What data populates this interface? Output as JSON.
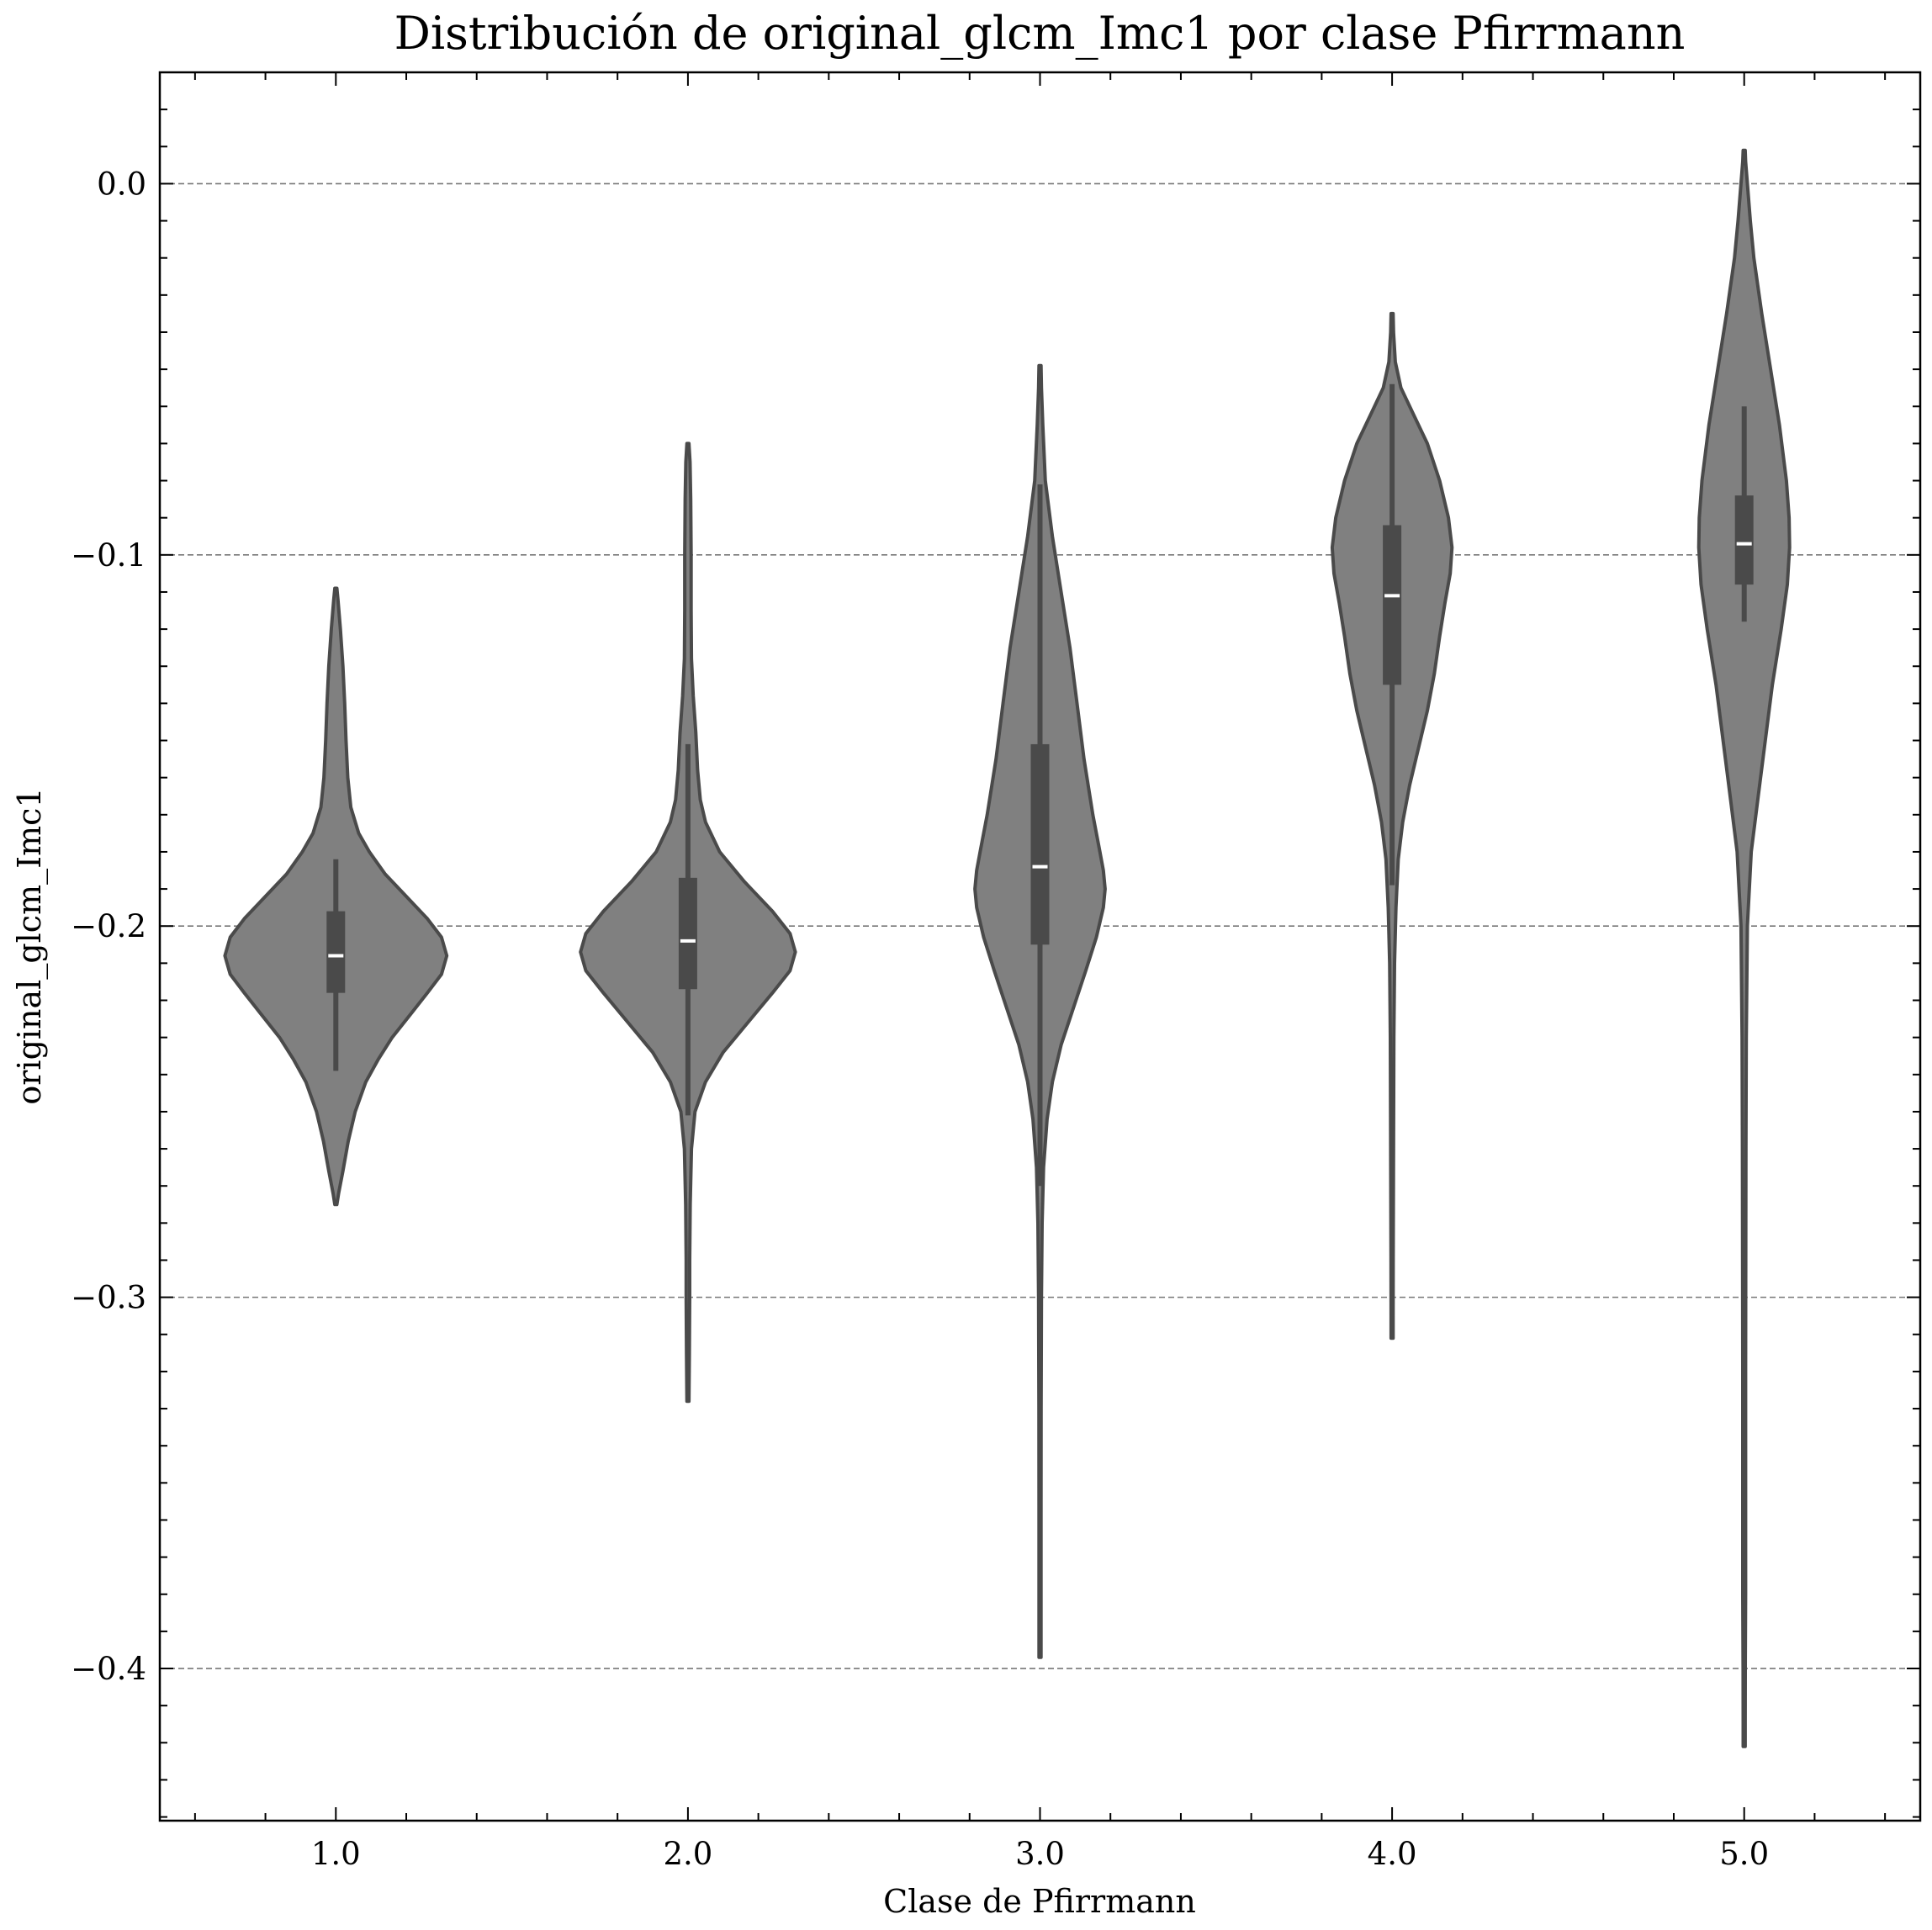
{
  "chart_data": {
    "type": "violin",
    "title": "Distribución de original_glcm_Imc1 por clase Pfirrmann",
    "xlabel": "Clase de Pfirrmann",
    "ylabel": "original_glcm_Imc1",
    "ylim": [
      -0.441,
      0.03
    ],
    "y_ticks": [
      0.0,
      -0.1,
      -0.2,
      -0.3,
      -0.4
    ],
    "y_tick_labels": [
      "0.0",
      "−0.1",
      "−0.2",
      "−0.3",
      "−0.4"
    ],
    "grid": "horizontal dashed at major y ticks",
    "colors": {
      "violin_fill": "#808080",
      "violin_edge": "#4a4a4a",
      "box": "#4a4a4a",
      "median": "#ffffff",
      "grid": "#777777"
    },
    "categories": [
      "1.0",
      "2.0",
      "3.0",
      "4.0",
      "5.0"
    ],
    "violins": [
      {
        "category": "1.0",
        "box": {
          "whisker_low": -0.239,
          "q1": -0.218,
          "median": -0.208,
          "q3": -0.196,
          "whisker_high": -0.182
        },
        "profile": [
          [
            -0.109,
            0.0
          ],
          [
            -0.112,
            0.012
          ],
          [
            -0.12,
            0.026
          ],
          [
            -0.13,
            0.04
          ],
          [
            -0.14,
            0.05
          ],
          [
            -0.15,
            0.058
          ],
          [
            -0.16,
            0.068
          ],
          [
            -0.168,
            0.085
          ],
          [
            -0.175,
            0.13
          ],
          [
            -0.18,
            0.19
          ],
          [
            -0.186,
            0.28
          ],
          [
            -0.192,
            0.4
          ],
          [
            -0.198,
            0.52
          ],
          [
            -0.203,
            0.6
          ],
          [
            -0.208,
            0.63
          ],
          [
            -0.213,
            0.6
          ],
          [
            -0.218,
            0.52
          ],
          [
            -0.224,
            0.42
          ],
          [
            -0.23,
            0.32
          ],
          [
            -0.236,
            0.24
          ],
          [
            -0.242,
            0.17
          ],
          [
            -0.25,
            0.11
          ],
          [
            -0.258,
            0.07
          ],
          [
            -0.266,
            0.04
          ],
          [
            -0.272,
            0.016
          ],
          [
            -0.275,
            0.0
          ]
        ]
      },
      {
        "category": "2.0",
        "box": {
          "whisker_low": -0.251,
          "q1": -0.217,
          "median": -0.204,
          "q3": -0.187,
          "whisker_high": -0.151
        },
        "profile": [
          [
            -0.07,
            0.0
          ],
          [
            -0.075,
            0.012
          ],
          [
            -0.085,
            0.016
          ],
          [
            -0.1,
            0.018
          ],
          [
            -0.115,
            0.018
          ],
          [
            -0.128,
            0.02
          ],
          [
            -0.138,
            0.03
          ],
          [
            -0.148,
            0.045
          ],
          [
            -0.158,
            0.055
          ],
          [
            -0.166,
            0.07
          ],
          [
            -0.172,
            0.1
          ],
          [
            -0.18,
            0.18
          ],
          [
            -0.188,
            0.32
          ],
          [
            -0.196,
            0.48
          ],
          [
            -0.202,
            0.58
          ],
          [
            -0.207,
            0.61
          ],
          [
            -0.212,
            0.58
          ],
          [
            -0.218,
            0.48
          ],
          [
            -0.226,
            0.34
          ],
          [
            -0.234,
            0.2
          ],
          [
            -0.242,
            0.1
          ],
          [
            -0.25,
            0.04
          ],
          [
            -0.26,
            0.02
          ],
          [
            -0.275,
            0.013
          ],
          [
            -0.29,
            0.01
          ],
          [
            -0.3,
            0.01
          ],
          [
            -0.315,
            0.008
          ],
          [
            -0.328,
            0.0
          ]
        ]
      },
      {
        "category": "3.0",
        "box": {
          "whisker_low": -0.27,
          "q1": -0.205,
          "median": -0.184,
          "q3": -0.151,
          "whisker_high": -0.081
        },
        "profile": [
          [
            -0.049,
            0.0
          ],
          [
            -0.055,
            0.008
          ],
          [
            -0.065,
            0.016
          ],
          [
            -0.08,
            0.03
          ],
          [
            -0.095,
            0.07
          ],
          [
            -0.11,
            0.12
          ],
          [
            -0.125,
            0.17
          ],
          [
            -0.14,
            0.21
          ],
          [
            -0.155,
            0.25
          ],
          [
            -0.17,
            0.3
          ],
          [
            -0.18,
            0.34
          ],
          [
            -0.185,
            0.36
          ],
          [
            -0.19,
            0.37
          ],
          [
            -0.195,
            0.36
          ],
          [
            -0.203,
            0.32
          ],
          [
            -0.212,
            0.26
          ],
          [
            -0.222,
            0.19
          ],
          [
            -0.232,
            0.12
          ],
          [
            -0.242,
            0.07
          ],
          [
            -0.252,
            0.04
          ],
          [
            -0.265,
            0.02
          ],
          [
            -0.28,
            0.012
          ],
          [
            -0.3,
            0.008
          ],
          [
            -0.33,
            0.006
          ],
          [
            -0.36,
            0.005
          ],
          [
            -0.385,
            0.004
          ],
          [
            -0.397,
            0.0
          ]
        ]
      },
      {
        "category": "4.0",
        "box": {
          "whisker_low": -0.189,
          "q1": -0.135,
          "median": -0.111,
          "q3": -0.092,
          "whisker_high": -0.054
        },
        "profile": [
          [
            -0.035,
            0.0
          ],
          [
            -0.04,
            0.008
          ],
          [
            -0.048,
            0.018
          ],
          [
            -0.055,
            0.05
          ],
          [
            -0.062,
            0.12
          ],
          [
            -0.07,
            0.2
          ],
          [
            -0.08,
            0.27
          ],
          [
            -0.09,
            0.32
          ],
          [
            -0.098,
            0.34
          ],
          [
            -0.105,
            0.33
          ],
          [
            -0.113,
            0.3
          ],
          [
            -0.122,
            0.27
          ],
          [
            -0.132,
            0.24
          ],
          [
            -0.142,
            0.2
          ],
          [
            -0.152,
            0.15
          ],
          [
            -0.162,
            0.1
          ],
          [
            -0.172,
            0.06
          ],
          [
            -0.182,
            0.035
          ],
          [
            -0.195,
            0.022
          ],
          [
            -0.21,
            0.014
          ],
          [
            -0.23,
            0.01
          ],
          [
            -0.26,
            0.008
          ],
          [
            -0.29,
            0.006
          ],
          [
            -0.305,
            0.004
          ],
          [
            -0.311,
            0.0
          ]
        ]
      },
      {
        "category": "5.0",
        "box": {
          "whisker_low": -0.118,
          "q1": -0.108,
          "median": -0.097,
          "q3": -0.084,
          "whisker_high": -0.06
        },
        "profile": [
          [
            0.009,
            0.0
          ],
          [
            0.006,
            0.008
          ],
          [
            0.0,
            0.018
          ],
          [
            -0.01,
            0.035
          ],
          [
            -0.02,
            0.055
          ],
          [
            -0.035,
            0.1
          ],
          [
            -0.05,
            0.15
          ],
          [
            -0.065,
            0.2
          ],
          [
            -0.08,
            0.24
          ],
          [
            -0.09,
            0.255
          ],
          [
            -0.098,
            0.258
          ],
          [
            -0.108,
            0.245
          ],
          [
            -0.12,
            0.21
          ],
          [
            -0.135,
            0.16
          ],
          [
            -0.15,
            0.12
          ],
          [
            -0.165,
            0.08
          ],
          [
            -0.18,
            0.04
          ],
          [
            -0.2,
            0.018
          ],
          [
            -0.23,
            0.012
          ],
          [
            -0.26,
            0.01
          ],
          [
            -0.29,
            0.009
          ],
          [
            -0.32,
            0.008
          ],
          [
            -0.35,
            0.008
          ],
          [
            -0.38,
            0.008
          ],
          [
            -0.4,
            0.006
          ],
          [
            -0.415,
            0.004
          ],
          [
            -0.421,
            0.0
          ]
        ]
      }
    ]
  }
}
